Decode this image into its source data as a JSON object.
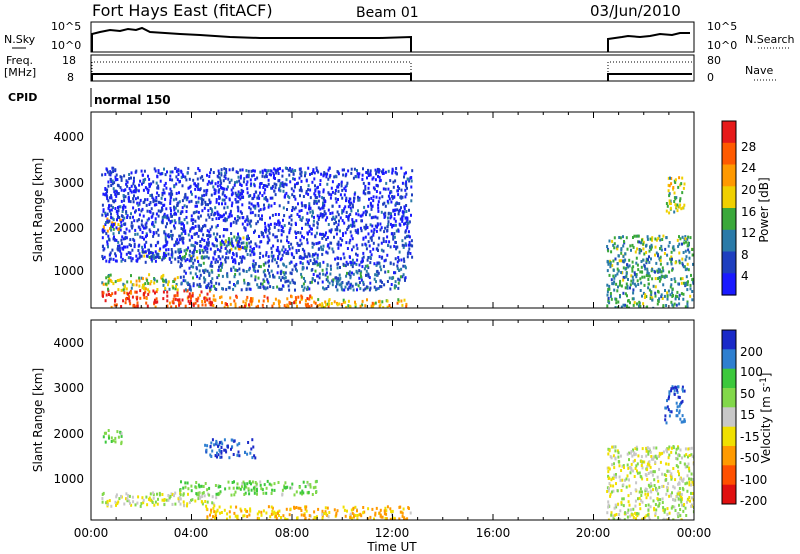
{
  "header": {
    "station": "Fort Hays East (fitACF)",
    "beam": "Beam 01",
    "date": "03/Jun/2010"
  },
  "noise_panel": {
    "left_label": "N.Sky",
    "right_label": "N.Search",
    "left_ticks": [
      "10^5",
      "10^0"
    ],
    "right_ticks": [
      "10^5",
      "10^0"
    ]
  },
  "freq_panel": {
    "left_label_1": "Freq.",
    "left_label_2": "[MHz]",
    "right_label": "Nave",
    "left_ticks": [
      "18",
      "8"
    ],
    "right_ticks": [
      "80",
      "0"
    ]
  },
  "cpid_panel": {
    "label": "CPID",
    "mode": "normal 150"
  },
  "axes": {
    "ylabel": "Slant Range [km]",
    "xlabel": "Time UT",
    "y_ticks": [
      "1000",
      "2000",
      "3000",
      "4000"
    ],
    "x_ticks": [
      "00:00",
      "04:00",
      "08:00",
      "12:00",
      "16:00",
      "20:00",
      "00:00"
    ]
  },
  "power_colorbar": {
    "label": "Power [dB]",
    "ticks": [
      "4",
      "8",
      "12",
      "16",
      "20",
      "24",
      "28"
    ],
    "colors": [
      "#1a1aff",
      "#1e3fbf",
      "#2a7aa8",
      "#3aa83a",
      "#f0d000",
      "#ff9900",
      "#ff5a00",
      "#e61a1a"
    ]
  },
  "velocity_colorbar": {
    "label_main": "Velocity [m s",
    "label_sup": "-1",
    "label_end": "]",
    "ticks": [
      "200",
      "100",
      "50",
      "15",
      "-15",
      "-50",
      "-100",
      "-200"
    ],
    "colors": [
      "#1a2ac8",
      "#2e7fd0",
      "#3cc83c",
      "#82d84a",
      "#c8c8c8",
      "#f0e000",
      "#ff9a00",
      "#ff5000",
      "#e01010"
    ]
  },
  "chart_data": {
    "type": "heatmap",
    "x_range_hours": [
      0,
      24
    ],
    "y_range_km": [
      180,
      4500
    ],
    "data_gap_hours": [
      12.75,
      20.5
    ],
    "power_panel": {
      "series": [
        {
          "value_db": 28,
          "x_start": 0.4,
          "x_end": 4.8,
          "y_from": 200,
          "y_to": 600
        },
        {
          "value_db": 24,
          "x_start": 4.8,
          "x_end": 9.0,
          "y_from": 200,
          "y_to": 480
        },
        {
          "value_db": 20,
          "x_start": 9.0,
          "x_end": 12.75,
          "y_from": 200,
          "y_to": 400
        },
        {
          "value_db": 16,
          "x_start": 0.4,
          "x_end": 3.5,
          "y_from": 600,
          "y_to": 950
        },
        {
          "value_db": 8,
          "x_start": 3.5,
          "x_end": 12.5,
          "y_from": 600,
          "y_to": 1200
        },
        {
          "value_db": 20,
          "x_start": 0.4,
          "x_end": 1.2,
          "y_from": 1900,
          "y_to": 2200
        },
        {
          "value_db": 16,
          "x_start": 5.0,
          "x_end": 6.2,
          "y_from": 1500,
          "y_to": 1800
        },
        {
          "value_db": 12,
          "x_start": 2.0,
          "x_end": 4.5,
          "y_from": 1300,
          "y_to": 1500
        },
        {
          "value_db": 4,
          "x_start": 0.4,
          "x_end": 12.75,
          "y_from": 1200,
          "y_to": 3300
        },
        {
          "value_db": 12,
          "x_start": 20.5,
          "x_end": 24,
          "y_from": 200,
          "y_to": 1800
        },
        {
          "value_db": 16,
          "x_start": 22.8,
          "x_end": 23.6,
          "y_from": 2300,
          "y_to": 3100
        }
      ]
    },
    "velocity_panel": {
      "series": [
        {
          "value_ms": 200,
          "x_start": 4.5,
          "x_end": 6.5,
          "y_from": 1550,
          "y_to": 1950
        },
        {
          "value_ms": 50,
          "x_start": 0.4,
          "x_end": 1.2,
          "y_from": 1850,
          "y_to": 2150
        },
        {
          "value_ms": 0,
          "x_start": 0.4,
          "x_end": 5.0,
          "y_from": 500,
          "y_to": 800
        },
        {
          "value_ms": -50,
          "x_start": 4.5,
          "x_end": 12.75,
          "y_from": 200,
          "y_to": 500
        },
        {
          "value_ms": 50,
          "x_start": 3.5,
          "x_end": 9.0,
          "y_from": 750,
          "y_to": 1050
        },
        {
          "value_ms": 0,
          "x_start": 20.5,
          "x_end": 24,
          "y_from": 200,
          "y_to": 1800
        },
        {
          "value_ms": 200,
          "x_start": 22.8,
          "x_end": 23.6,
          "y_from": 2300,
          "y_to": 3100
        }
      ]
    }
  }
}
